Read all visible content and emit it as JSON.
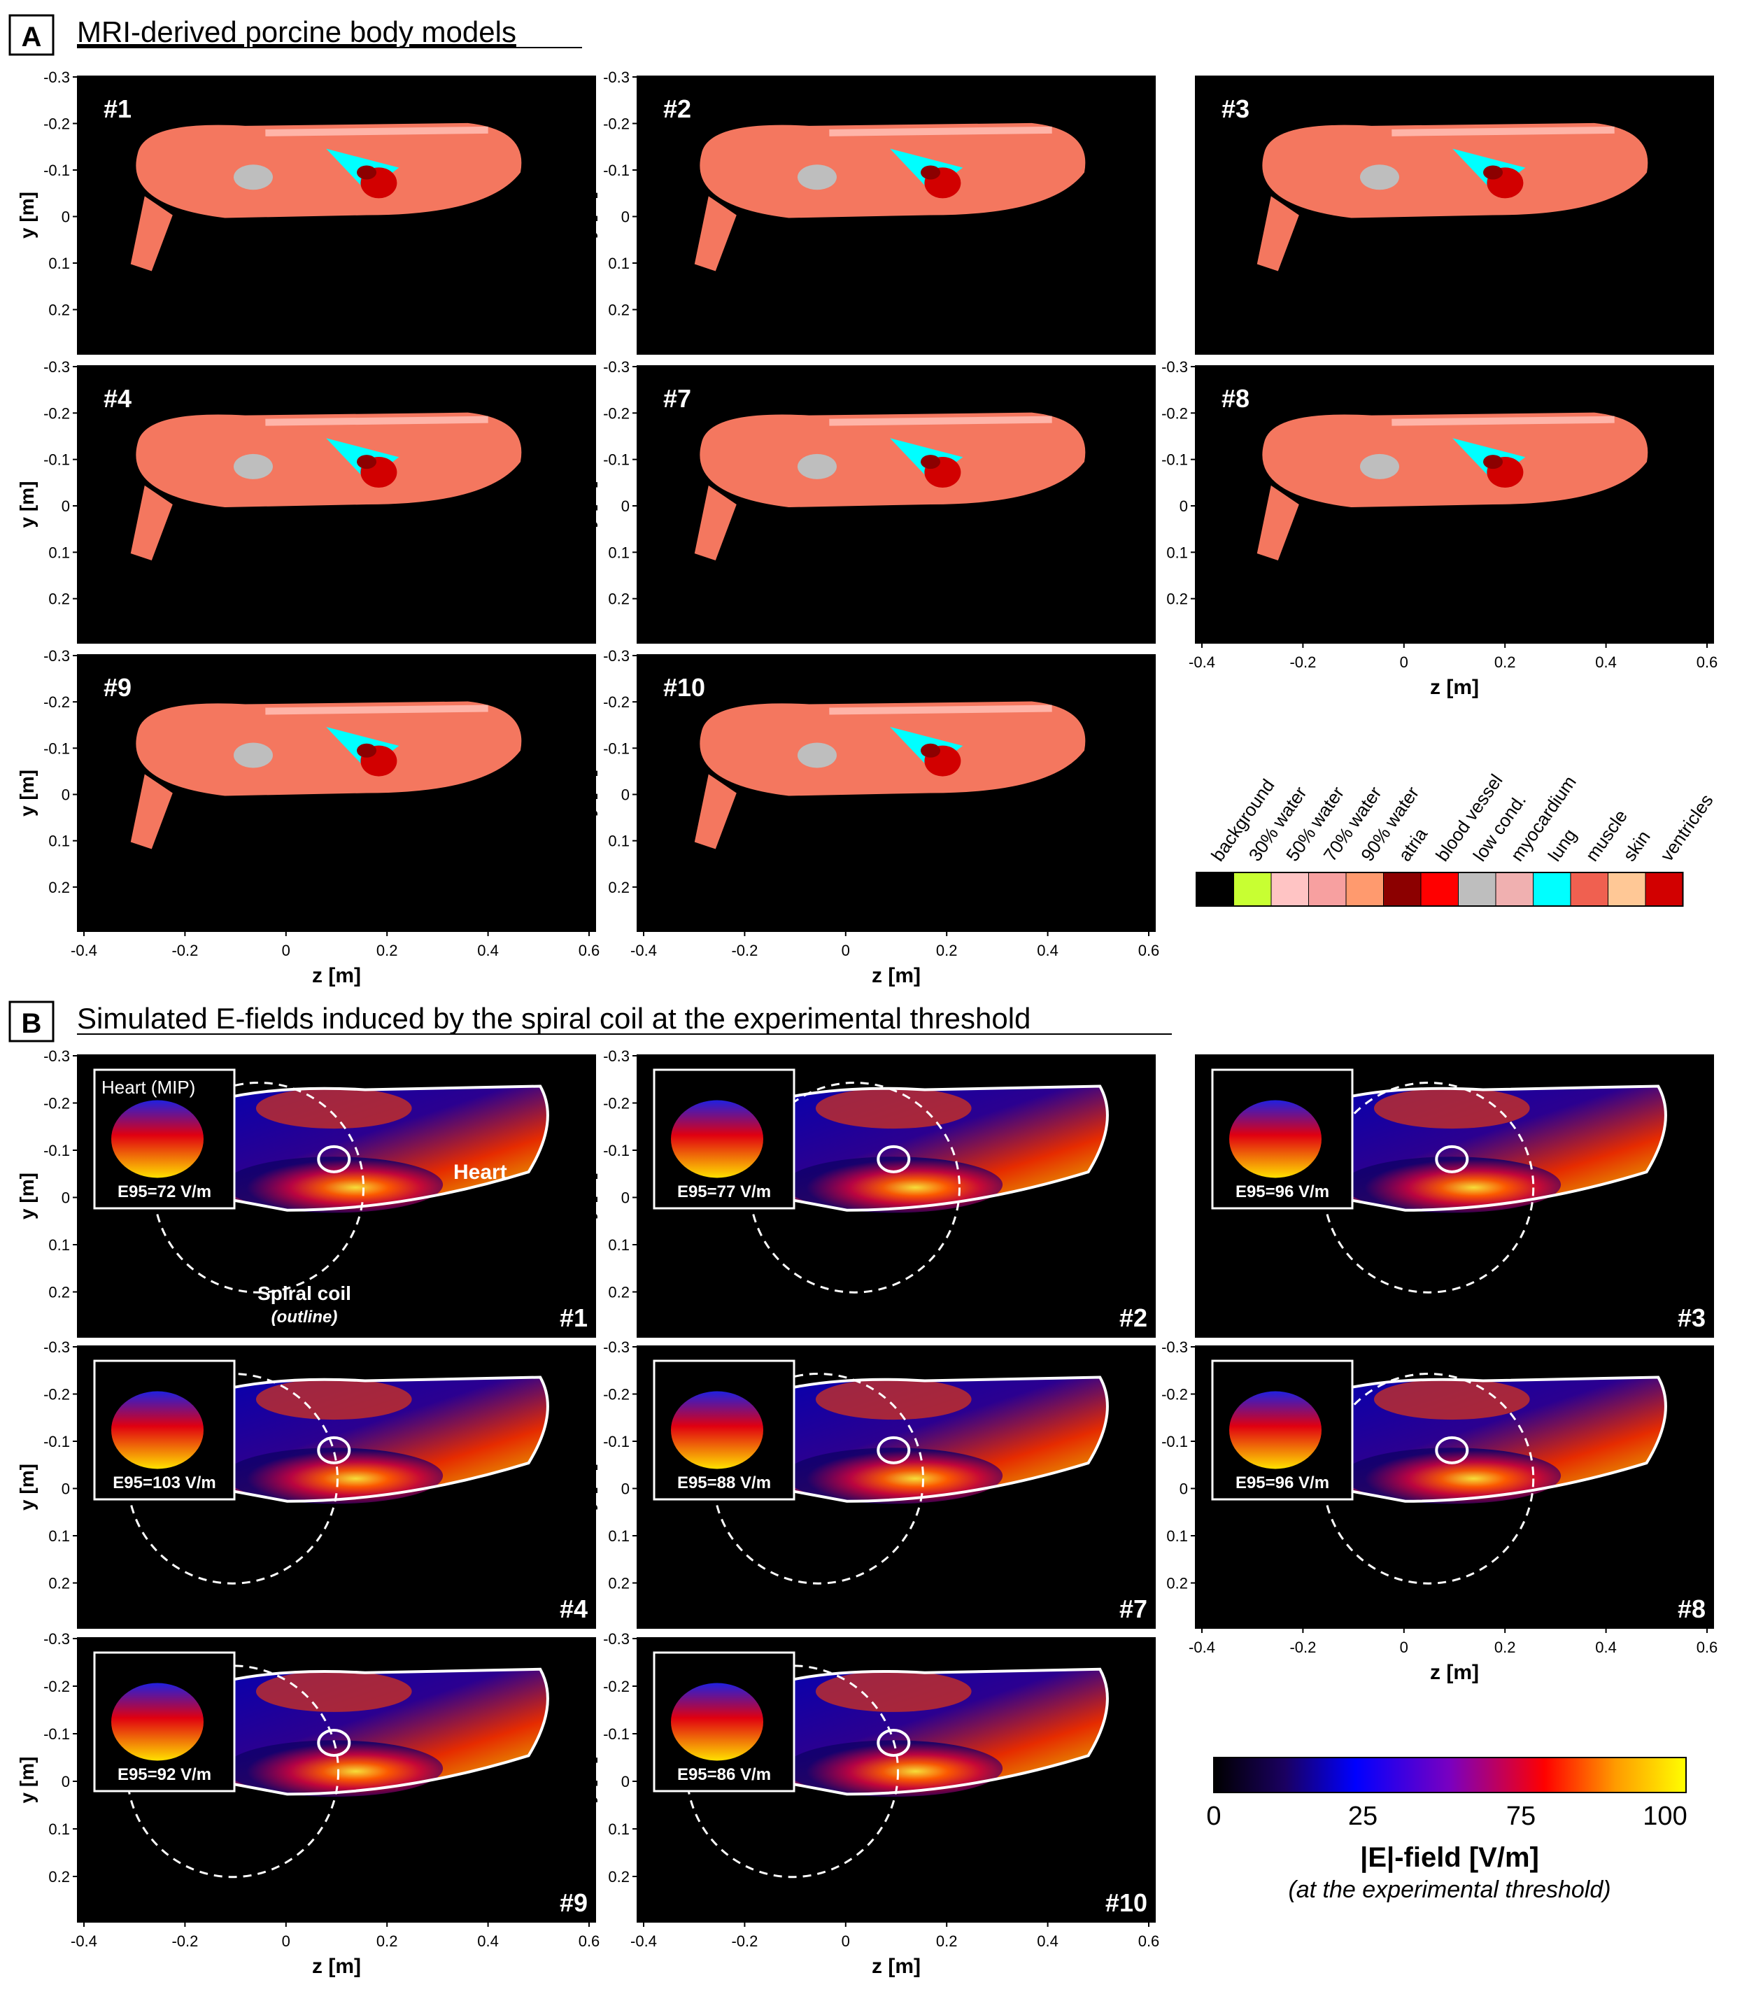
{
  "section_a": {
    "label": "A",
    "title": "MRI-derived porcine body models"
  },
  "section_b": {
    "label": "B",
    "title": "Simulated E-fields induced by the spiral coil at the experimental threshold"
  },
  "axes": {
    "xlabel": "z [m]",
    "ylabel": "y [m]",
    "y_ticks": [
      "-0.3",
      "-0.2",
      "-0.1",
      "0",
      "0.1",
      "0.2"
    ],
    "x_ticks": [
      "-0.4",
      "-0.2",
      "0",
      "0.2",
      "0.4",
      "0.6"
    ]
  },
  "models_a": [
    {
      "id": "#1"
    },
    {
      "id": "#2"
    },
    {
      "id": "#3"
    },
    {
      "id": "#4"
    },
    {
      "id": "#7"
    },
    {
      "id": "#8"
    },
    {
      "id": "#9"
    },
    {
      "id": "#10"
    }
  ],
  "tissue_legend": {
    "labels": [
      "background",
      "30% water",
      "50% water",
      "70% water",
      "90% water",
      "atria",
      "blood vessel",
      "low cond.",
      "myocardium",
      "lung",
      "muscle",
      "skin",
      "ventricles"
    ],
    "colors": [
      "#000000",
      "#c8ff32",
      "#ffc4c4",
      "#f7a0a0",
      "#ff9a6e",
      "#8c0000",
      "#ff0000",
      "#bebebe",
      "#f0b0b0",
      "#00ffff",
      "#f06050",
      "#ffc896",
      "#d20000"
    ]
  },
  "efield_models": [
    {
      "id": "#1",
      "e95": "E95=72 V/m"
    },
    {
      "id": "#2",
      "e95": "E95=77 V/m"
    },
    {
      "id": "#3",
      "e95": "E95=96 V/m"
    },
    {
      "id": "#4",
      "e95": "E95=103 V/m"
    },
    {
      "id": "#7",
      "e95": "E95=88 V/m"
    },
    {
      "id": "#8",
      "e95": "E95=96 V/m"
    },
    {
      "id": "#9",
      "e95": "E95=92 V/m"
    },
    {
      "id": "#10",
      "e95": "E95=86 V/m"
    }
  ],
  "annotations": {
    "heart_mip": "Heart (MIP)",
    "heart": "Heart",
    "spiral_coil": "Spiral coil",
    "outline": "(outline)"
  },
  "colorbar": {
    "ticks": [
      "0",
      "25",
      "75",
      "100"
    ],
    "label": "|E|-field [V/m]",
    "sublabel": "(at the experimental threshold)",
    "colors": [
      "#000000",
      "#1a0060",
      "#0000ff",
      "#7a00c0",
      "#ff0000",
      "#ff9a00",
      "#ffff00"
    ]
  }
}
